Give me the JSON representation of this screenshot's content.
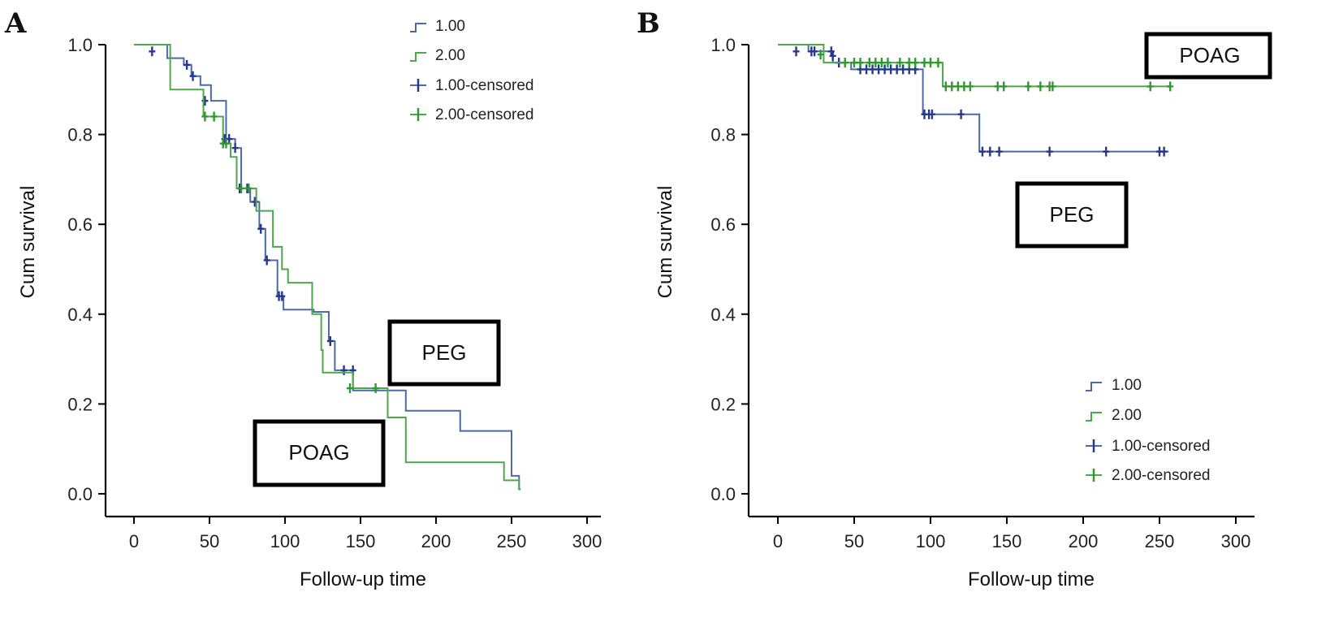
{
  "colors": {
    "series1": "#4a6aa8",
    "series2": "#4ea84a",
    "censor1": "#27388f",
    "censor2": "#2e9a2e"
  },
  "chart_data": [
    {
      "panel": "A",
      "type": "line",
      "subtype": "kaplan-meier",
      "xlabel": "Follow-up time",
      "ylabel": "Cum survival",
      "xlim": [
        0,
        300
      ],
      "ylim": [
        0,
        1
      ],
      "xticks": [
        0,
        50,
        100,
        150,
        200,
        250,
        300
      ],
      "yticks": [
        0.0,
        0.2,
        0.4,
        0.6,
        0.8,
        1.0
      ],
      "xtick_labels": [
        "0",
        "50",
        "100",
        "150",
        "200",
        "250",
        "300"
      ],
      "ytick_labels": [
        "0.0",
        "0.2",
        "0.4",
        "0.6",
        "0.8",
        "1.0"
      ],
      "grid": false,
      "legend_position": "top-right",
      "legend": [
        "1.00",
        "2.00",
        "1.00-censored",
        "2.00-censored"
      ],
      "annotations": [
        "PEG",
        "POAG"
      ],
      "series": [
        {
          "name": "1.00",
          "steps": [
            [
              0,
              1.0
            ],
            [
              22,
              0.97
            ],
            [
              33,
              0.955
            ],
            [
              38,
              0.93
            ],
            [
              44,
              0.91
            ],
            [
              51,
              0.875
            ],
            [
              61,
              0.79
            ],
            [
              67,
              0.77
            ],
            [
              71,
              0.68
            ],
            [
              77,
              0.65
            ],
            [
              83,
              0.59
            ],
            [
              87,
              0.52
            ],
            [
              95,
              0.44
            ],
            [
              99,
              0.41
            ],
            [
              110,
              0.41
            ],
            [
              119,
              0.405
            ],
            [
              129,
              0.34
            ],
            [
              133,
              0.275
            ],
            [
              145,
              0.23
            ],
            [
              180,
              0.185
            ],
            [
              216,
              0.14
            ],
            [
              250,
              0.04
            ],
            [
              255,
              0.01
            ]
          ],
          "end": 256,
          "censored": [
            [
              12,
              0.985
            ],
            [
              35,
              0.955
            ],
            [
              39,
              0.93
            ],
            [
              47,
              0.875
            ],
            [
              60,
              0.79
            ],
            [
              63,
              0.79
            ],
            [
              67,
              0.77
            ],
            [
              70,
              0.68
            ],
            [
              75,
              0.68
            ],
            [
              80,
              0.65
            ],
            [
              84,
              0.59
            ],
            [
              88,
              0.52
            ],
            [
              96,
              0.44
            ],
            [
              98,
              0.44
            ],
            [
              130,
              0.34
            ],
            [
              139,
              0.275
            ],
            [
              145,
              0.275
            ]
          ]
        },
        {
          "name": "2.00",
          "steps": [
            [
              0,
              1.0
            ],
            [
              24,
              0.9
            ],
            [
              46,
              0.84
            ],
            [
              54,
              0.84
            ],
            [
              59,
              0.78
            ],
            [
              64,
              0.75
            ],
            [
              68,
              0.68
            ],
            [
              75,
              0.68
            ],
            [
              81,
              0.63
            ],
            [
              92,
              0.55
            ],
            [
              98,
              0.5
            ],
            [
              102,
              0.47
            ],
            [
              118,
              0.4
            ],
            [
              124,
              0.32
            ],
            [
              125,
              0.27
            ],
            [
              145,
              0.235
            ],
            [
              165,
              0.235
            ],
            [
              168,
              0.17
            ],
            [
              180,
              0.07
            ],
            [
              245,
              0.03
            ],
            [
              255,
              0.01
            ]
          ],
          "end": 256,
          "censored": [
            [
              47,
              0.84
            ],
            [
              53,
              0.84
            ],
            [
              59,
              0.78
            ],
            [
              61,
              0.78
            ],
            [
              71,
              0.68
            ],
            [
              76,
              0.68
            ],
            [
              143,
              0.235
            ],
            [
              160,
              0.235
            ]
          ]
        }
      ]
    },
    {
      "panel": "B",
      "type": "line",
      "subtype": "kaplan-meier",
      "xlabel": "Follow-up time",
      "ylabel": "Cum survival",
      "xlim": [
        0,
        300
      ],
      "ylim": [
        0,
        1
      ],
      "xticks": [
        0,
        50,
        100,
        150,
        200,
        250,
        300
      ],
      "yticks": [
        0.0,
        0.2,
        0.4,
        0.6,
        0.8,
        1.0
      ],
      "xtick_labels": [
        "0",
        "50",
        "100",
        "150",
        "200",
        "250",
        "300"
      ],
      "ytick_labels": [
        "0.0",
        "0.2",
        "0.4",
        "0.6",
        "0.8",
        "1.0"
      ],
      "grid": false,
      "legend_position": "bottom-right",
      "legend": [
        "1.00",
        "2.00",
        "1.00-censored",
        "2.00-censored"
      ],
      "annotations": [
        "POAG",
        "PEG"
      ],
      "series": [
        {
          "name": "1.00",
          "steps": [
            [
              0,
              1.0
            ],
            [
              20,
              0.985
            ],
            [
              36,
              0.96
            ],
            [
              48,
              0.945
            ],
            [
              95,
              0.845
            ],
            [
              132,
              0.762
            ]
          ],
          "end": 256,
          "censored": [
            [
              12,
              0.985
            ],
            [
              22,
              0.985
            ],
            [
              24,
              0.985
            ],
            [
              35,
              0.985
            ],
            [
              36,
              0.975
            ],
            [
              40,
              0.96
            ],
            [
              54,
              0.945
            ],
            [
              58,
              0.945
            ],
            [
              62,
              0.945
            ],
            [
              66,
              0.945
            ],
            [
              70,
              0.945
            ],
            [
              74,
              0.945
            ],
            [
              78,
              0.945
            ],
            [
              82,
              0.945
            ],
            [
              86,
              0.945
            ],
            [
              90,
              0.945
            ],
            [
              96,
              0.845
            ],
            [
              99,
              0.845
            ],
            [
              101,
              0.845
            ],
            [
              120,
              0.845
            ],
            [
              134,
              0.762
            ],
            [
              139,
              0.762
            ],
            [
              145,
              0.762
            ],
            [
              178,
              0.762
            ],
            [
              215,
              0.762
            ],
            [
              250,
              0.762
            ],
            [
              253,
              0.762
            ]
          ]
        },
        {
          "name": "2.00",
          "steps": [
            [
              0,
              1.0
            ],
            [
              30,
              0.96
            ],
            [
              108,
              0.907
            ]
          ],
          "end": 257,
          "censored": [
            [
              28,
              0.978
            ],
            [
              44,
              0.96
            ],
            [
              50,
              0.96
            ],
            [
              54,
              0.96
            ],
            [
              60,
              0.96
            ],
            [
              64,
              0.96
            ],
            [
              68,
              0.96
            ],
            [
              72,
              0.96
            ],
            [
              80,
              0.96
            ],
            [
              86,
              0.96
            ],
            [
              90,
              0.96
            ],
            [
              96,
              0.96
            ],
            [
              100,
              0.96
            ],
            [
              105,
              0.96
            ],
            [
              110,
              0.907
            ],
            [
              114,
              0.907
            ],
            [
              118,
              0.907
            ],
            [
              122,
              0.907
            ],
            [
              126,
              0.907
            ],
            [
              144,
              0.907
            ],
            [
              148,
              0.907
            ],
            [
              164,
              0.907
            ],
            [
              172,
              0.907
            ],
            [
              178,
              0.907
            ],
            [
              180,
              0.907
            ],
            [
              244,
              0.907
            ],
            [
              257,
              0.907
            ]
          ]
        }
      ]
    }
  ]
}
